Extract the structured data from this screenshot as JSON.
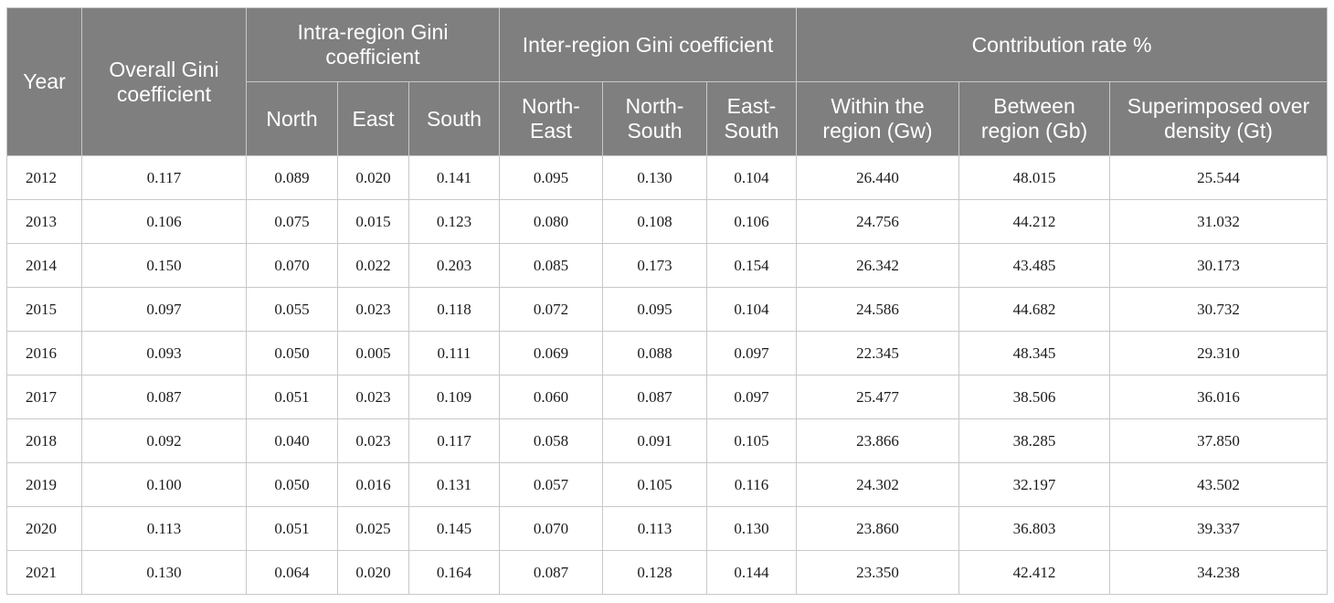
{
  "headers": {
    "year": "Year",
    "overall": "Overall Gini coefficient",
    "intra": "Intra-region Gini coefficient",
    "inter": "Inter-region Gini coefficient",
    "contrib": "Contribution rate %",
    "north": "North",
    "east": "East",
    "south": "South",
    "north_east": "North-East",
    "north_south": "North-South",
    "east_south": "East-South",
    "gw": "Within the region (Gw)",
    "gb": "Between region (Gb)",
    "gt": "Superimposed over density (Gt)"
  },
  "rows": [
    [
      "2012",
      "0.117",
      "0.089",
      "0.020",
      "0.141",
      "0.095",
      "0.130",
      "0.104",
      "26.440",
      "48.015",
      "25.544"
    ],
    [
      "2013",
      "0.106",
      "0.075",
      "0.015",
      "0.123",
      "0.080",
      "0.108",
      "0.106",
      "24.756",
      "44.212",
      "31.032"
    ],
    [
      "2014",
      "0.150",
      "0.070",
      "0.022",
      "0.203",
      "0.085",
      "0.173",
      "0.154",
      "26.342",
      "43.485",
      "30.173"
    ],
    [
      "2015",
      "0.097",
      "0.055",
      "0.023",
      "0.118",
      "0.072",
      "0.095",
      "0.104",
      "24.586",
      "44.682",
      "30.732"
    ],
    [
      "2016",
      "0.093",
      "0.050",
      "0.005",
      "0.111",
      "0.069",
      "0.088",
      "0.097",
      "22.345",
      "48.345",
      "29.310"
    ],
    [
      "2017",
      "0.087",
      "0.051",
      "0.023",
      "0.109",
      "0.060",
      "0.087",
      "0.097",
      "25.477",
      "38.506",
      "36.016"
    ],
    [
      "2018",
      "0.092",
      "0.040",
      "0.023",
      "0.117",
      "0.058",
      "0.091",
      "0.105",
      "23.866",
      "38.285",
      "37.850"
    ],
    [
      "2019",
      "0.100",
      "0.050",
      "0.016",
      "0.131",
      "0.057",
      "0.105",
      "0.116",
      "24.302",
      "32.197",
      "43.502"
    ],
    [
      "2020",
      "0.113",
      "0.051",
      "0.025",
      "0.145",
      "0.070",
      "0.113",
      "0.130",
      "23.860",
      "36.803",
      "39.337"
    ],
    [
      "2021",
      "0.130",
      "0.064",
      "0.020",
      "0.164",
      "0.087",
      "0.128",
      "0.144",
      "23.350",
      "42.412",
      "34.238"
    ]
  ]
}
